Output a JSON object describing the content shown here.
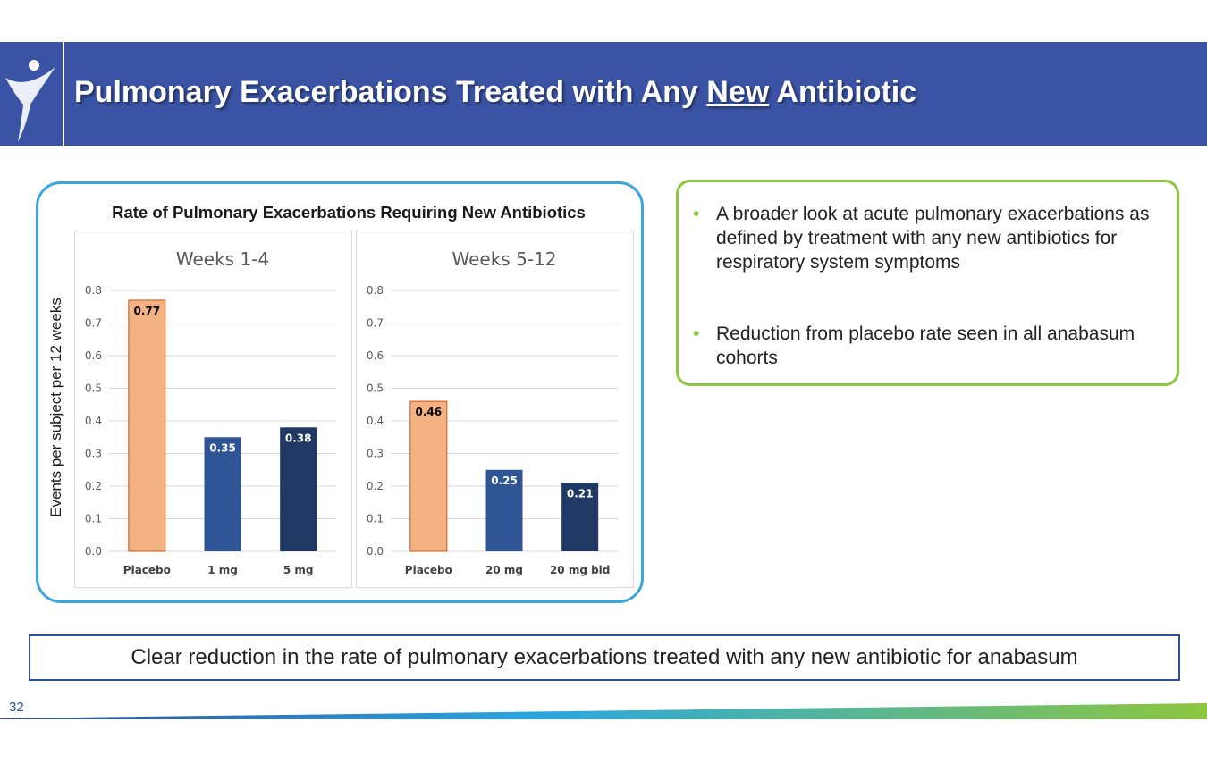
{
  "slide": {
    "title_part1": "Pulmonary Exacerbations Treated with Any ",
    "title_underlined": "New",
    "title_part2": " Antibiotic",
    "chart_heading": "Rate of Pulmonary Exacerbations Requiring New Antibiotics",
    "y_axis_label": "Events per subject per 12 weeks",
    "bullets": [
      "A broader look at acute pulmonary exacerbations as defined by treatment with any new antibiotics for respiratory system symptoms",
      "Reduction from placebo rate seen in all anabasum cohorts"
    ],
    "conclusion": "Clear reduction in the rate of pulmonary exacerbations treated with any new antibiotic for anabasum",
    "page_number": "32",
    "colors": {
      "header": "#3a53a4",
      "chart_border": "#3aa6dd",
      "bullet_border": "#8cc63f"
    }
  },
  "chart_data": [
    {
      "type": "bar",
      "title": "Weeks 1-4",
      "categories": [
        "Placebo",
        "1 mg",
        "5 mg"
      ],
      "values": [
        0.77,
        0.35,
        0.38
      ],
      "labels": [
        "0.77",
        "0.35",
        "0.38"
      ],
      "colors": [
        "#f4b183",
        "#2f5597",
        "#1f3864"
      ],
      "ylim": [
        0,
        0.8
      ],
      "yticks": [
        "0.0",
        "0.1",
        "0.2",
        "0.3",
        "0.4",
        "0.5",
        "0.6",
        "0.7",
        "0.8"
      ],
      "grid": true
    },
    {
      "type": "bar",
      "title": "Weeks 5-12",
      "categories": [
        "Placebo",
        "20 mg",
        "20 mg bid"
      ],
      "values": [
        0.46,
        0.25,
        0.21
      ],
      "labels": [
        "0.46",
        "0.25",
        "0.21"
      ],
      "colors": [
        "#f4b183",
        "#2f5597",
        "#1f3864"
      ],
      "ylim": [
        0,
        0.8
      ],
      "yticks": [
        "0.0",
        "0.1",
        "0.2",
        "0.3",
        "0.4",
        "0.5",
        "0.6",
        "0.7",
        "0.8"
      ],
      "grid": true
    }
  ]
}
